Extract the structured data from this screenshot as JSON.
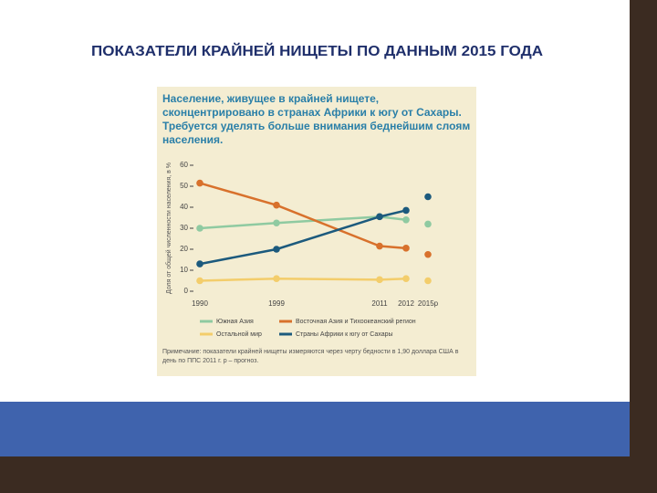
{
  "slide_title": "ПОКАЗАТЕЛИ КРАЙНЕЙ НИЩЕТЫ ПО ДАННЫМ 2015 ГОДА",
  "chart_data": {
    "type": "line",
    "title": "Население, живущее в крайней нищете, сконцентрировано в странах Африки к югу от Сахары. Требуется уделять больше внимания беднейшим слоям населения.",
    "y_label": "Доля от общей численности населения, в %",
    "categories": [
      "1990",
      "1999",
      "2011",
      "2012",
      "2015p"
    ],
    "series": [
      {
        "name": "Южная Азия",
        "color": "#8fcaa1",
        "values": [
          30,
          32.5,
          35.5,
          34,
          32
        ]
      },
      {
        "name": "Восточная Азия и Тихоокеанский регион",
        "color": "#d8712c",
        "values": [
          51.5,
          41,
          21.5,
          20.5,
          17.5
        ]
      },
      {
        "name": "Остальной мир",
        "color": "#f3cd6b",
        "values": [
          5,
          6,
          5.5,
          6,
          5
        ]
      },
      {
        "name": "Страны Африки к югу от Сахары",
        "color": "#1c5a7d",
        "values": [
          13,
          20,
          35.5,
          38.5,
          45
        ]
      }
    ],
    "ylim": [
      0,
      60
    ],
    "yticks": [
      0,
      10,
      20,
      30,
      40,
      50,
      60
    ],
    "note": "Примечание: показатели крайней нищеты измеряются через черту бедности в 1,90 доллара США в день по ППС 2011 г. p – прогноз."
  }
}
